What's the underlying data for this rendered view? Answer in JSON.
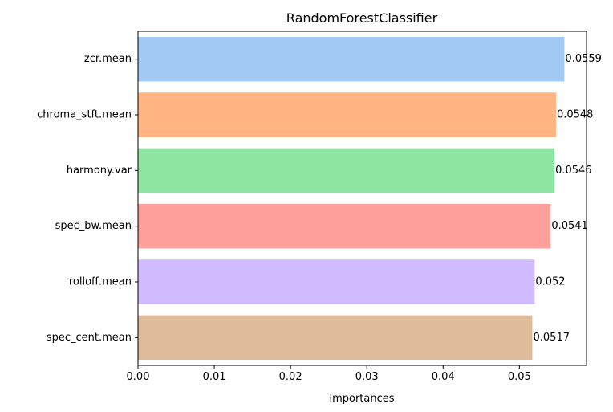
{
  "chart_data": {
    "type": "bar",
    "orientation": "horizontal",
    "title": "RandomForestClassifier",
    "xlabel": "importances",
    "ylabel": "",
    "categories": [
      "zcr.mean",
      "chroma_stft.mean",
      "harmony.var",
      "spec_bw.mean",
      "rolloff.mean",
      "spec_cent.mean"
    ],
    "values": [
      0.0559,
      0.0548,
      0.0546,
      0.0541,
      0.052,
      0.0517
    ],
    "data_labels": [
      "0.0559",
      "0.0548",
      "0.0546",
      "0.0541",
      "0.052",
      "0.0517"
    ],
    "colors": [
      "#a1c9f4",
      "#ffb482",
      "#8de5a1",
      "#ff9f9b",
      "#d0bbff",
      "#debb9b"
    ],
    "xlim": [
      0,
      0.0588
    ],
    "xticks": [
      0.0,
      0.01,
      0.02,
      0.03,
      0.04,
      0.05
    ],
    "xtick_labels": [
      "0.00",
      "0.01",
      "0.02",
      "0.03",
      "0.04",
      "0.05"
    ],
    "grid": false,
    "legend": "none"
  }
}
